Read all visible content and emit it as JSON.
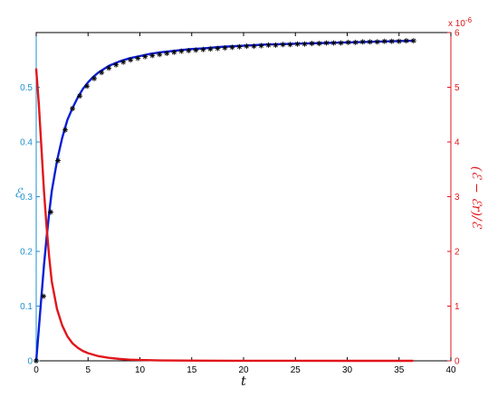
{
  "chart_data": {
    "type": "line",
    "xlabel": "t",
    "ylabel_left": "ℰ",
    "ylabel_right": "(ℰ − ℰr)/ℰ",
    "right_exponent": "x 10",
    "right_exponent_power": "-6",
    "xlim": [
      0,
      40
    ],
    "ylim_left": [
      0,
      0.6
    ],
    "ylim_right": [
      0,
      6
    ],
    "x_ticks": [
      "0",
      "5",
      "10",
      "15",
      "20",
      "25",
      "30",
      "35",
      "40"
    ],
    "y_left_ticks": [
      "0",
      "0.1",
      "0.2",
      "0.3",
      "0.4",
      "0.5"
    ],
    "y_right_ticks": [
      "0",
      "1",
      "2",
      "3",
      "4",
      "5",
      "6"
    ],
    "grid": false,
    "colors": {
      "left_axis": "#1f8fd0",
      "right_axis": "#e0161b",
      "blue_curve": "#0a1fd6",
      "red_curve": "#e0161b",
      "markers": "#000000"
    },
    "series": [
      {
        "axis": "left",
        "style": "line",
        "x": [
          0,
          0.25,
          0.5,
          0.75,
          1,
          1.25,
          1.5,
          2,
          2.5,
          3,
          3.5,
          4,
          4.5,
          5,
          5.5,
          6,
          7,
          8,
          9,
          10,
          11,
          12,
          13,
          14,
          15,
          16,
          18,
          20,
          22,
          24,
          26,
          28,
          30,
          32,
          34,
          36.3
        ],
        "y": [
          0,
          0.058,
          0.117,
          0.175,
          0.225,
          0.27,
          0.31,
          0.365,
          0.407,
          0.44,
          0.462,
          0.481,
          0.497,
          0.509,
          0.519,
          0.527,
          0.539,
          0.547,
          0.553,
          0.557,
          0.561,
          0.564,
          0.566,
          0.568,
          0.57,
          0.571,
          0.574,
          0.576,
          0.578,
          0.579,
          0.58,
          0.581,
          0.582,
          0.583,
          0.584,
          0.585
        ]
      },
      {
        "axis": "left",
        "style": "markers",
        "x": [
          0,
          0.7,
          1.4,
          2.1,
          2.8,
          3.5,
          4.2,
          4.9,
          5.6,
          6.3,
          7,
          7.7,
          8.4,
          9.1,
          9.8,
          10.5,
          11.2,
          11.9,
          12.6,
          13.3,
          14,
          14.7,
          15.4,
          16.1,
          16.8,
          17.5,
          18.2,
          18.9,
          19.6,
          20.3,
          21,
          21.7,
          22.4,
          23.1,
          23.8,
          24.5,
          25.2,
          25.9,
          26.6,
          27.3,
          28,
          28.7,
          29.4,
          30.1,
          30.8,
          31.5,
          32.2,
          32.9,
          33.6,
          34.3,
          35,
          35.7,
          36.4
        ],
        "y": [
          0,
          0.118,
          0.272,
          0.366,
          0.422,
          0.461,
          0.484,
          0.502,
          0.516,
          0.527,
          0.535,
          0.541,
          0.546,
          0.55,
          0.553,
          0.556,
          0.558,
          0.56,
          0.562,
          0.564,
          0.566,
          0.567,
          0.568,
          0.569,
          0.57,
          0.571,
          0.572,
          0.573,
          0.574,
          0.575,
          0.575,
          0.576,
          0.577,
          0.577,
          0.578,
          0.578,
          0.579,
          0.579,
          0.58,
          0.58,
          0.581,
          0.581,
          0.581,
          0.582,
          0.582,
          0.583,
          0.583,
          0.583,
          0.584,
          0.584,
          0.584,
          0.585,
          0.585
        ]
      },
      {
        "axis": "right",
        "style": "line",
        "x": [
          0,
          0.25,
          0.5,
          0.75,
          1,
          1.25,
          1.5,
          2,
          2.5,
          3,
          3.5,
          4,
          4.5,
          5,
          6,
          7,
          8,
          9,
          10,
          12,
          14,
          16,
          20,
          25,
          30,
          36.3
        ],
        "y": [
          5.33,
          4.7,
          3.9,
          3.1,
          2.45,
          1.9,
          1.45,
          0.95,
          0.65,
          0.45,
          0.32,
          0.24,
          0.18,
          0.14,
          0.085,
          0.055,
          0.035,
          0.022,
          0.015,
          0.008,
          0.005,
          0.003,
          0.001,
          0.0005,
          0.0002,
          0.0001
        ]
      }
    ]
  }
}
